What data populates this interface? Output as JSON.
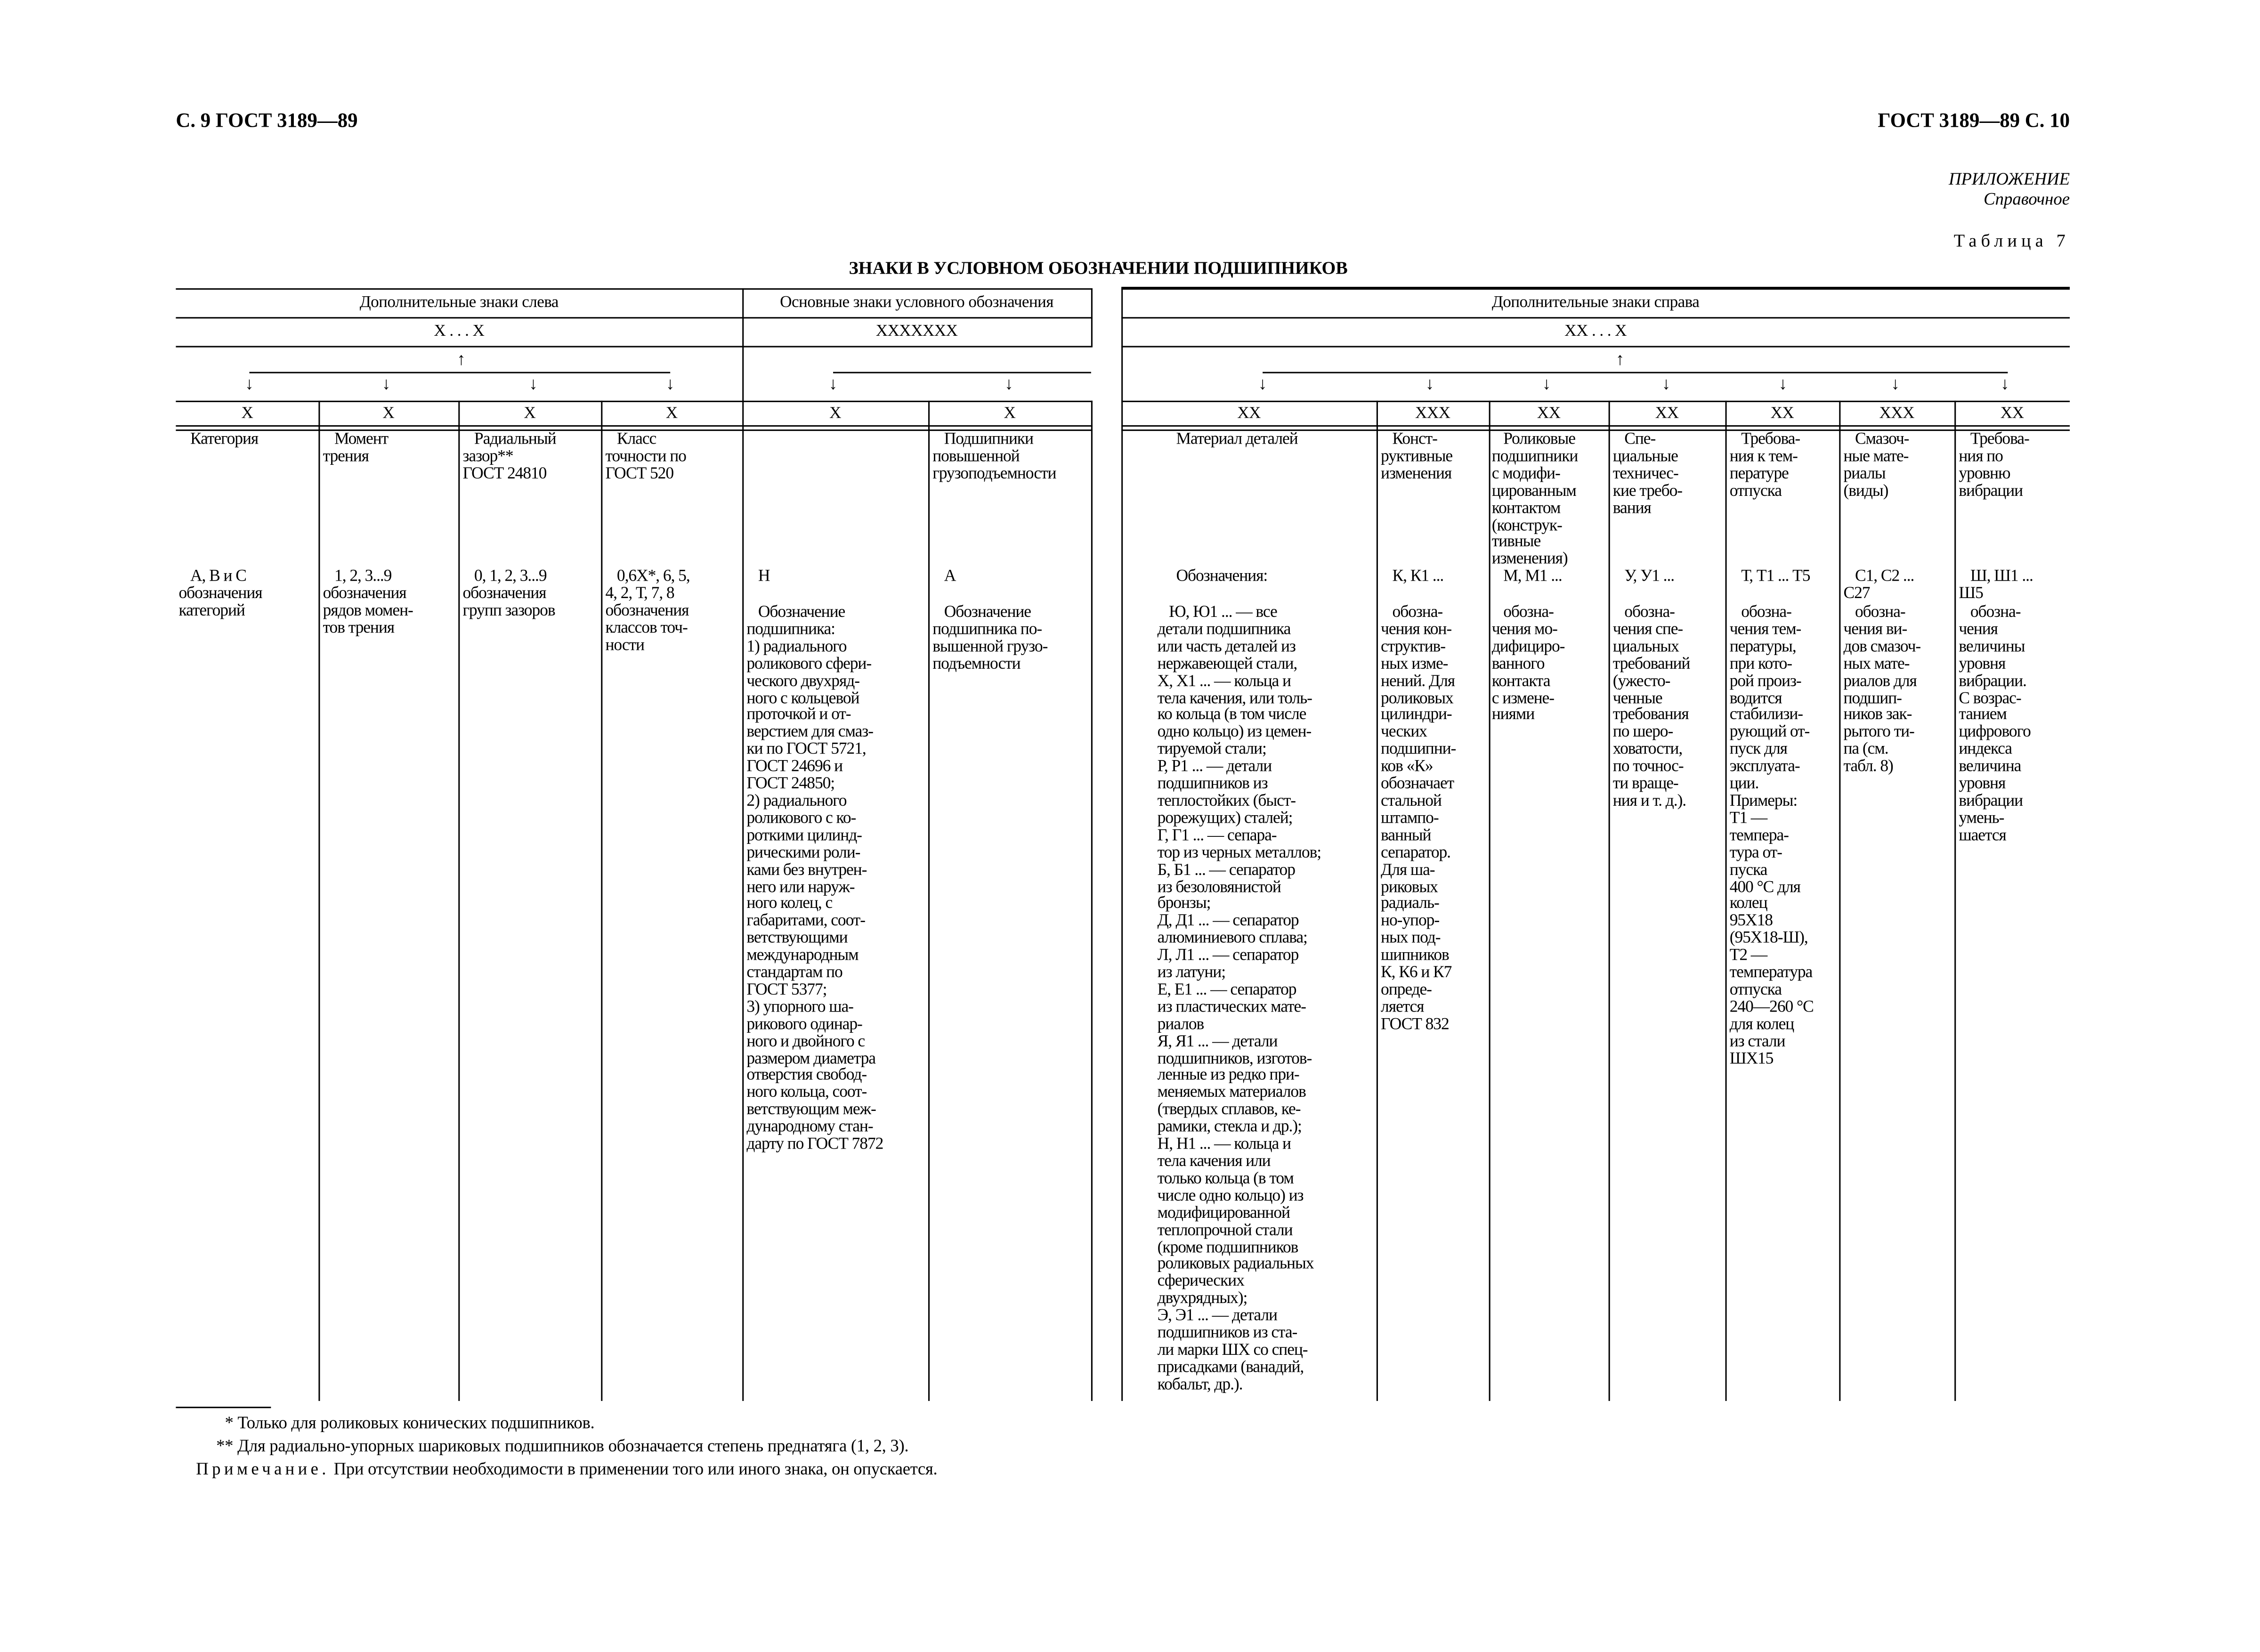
{
  "header": {
    "left": "С. 9 ГОСТ 3189—89",
    "right": "ГОСТ 3189—89 С. 10",
    "appendix": "ПРИЛОЖЕНИЕ",
    "appendix_type": "Справочное",
    "table_number": "Таблица 7",
    "title": "ЗНАКИ В УСЛОВНОМ ОБОЗНАЧЕНИИ ПОДШИПНИКОВ"
  },
  "groups": {
    "left": {
      "label": "Дополнительные знаки слева",
      "pattern": "X . . . X"
    },
    "main": {
      "label": "Основные знаки условного обозначения",
      "pattern": "XXXXXXX"
    },
    "right": {
      "label": "Дополнительные знаки справа",
      "pattern": "XX . . . X"
    }
  },
  "arrows": {
    "up": "↑",
    "down": "↓"
  },
  "columns": [
    {
      "mark": "X",
      "label": "Категория",
      "value": "А, В и С\nобозначения\nкатегорий",
      "desc": ""
    },
    {
      "mark": "X",
      "label": "Момент\nтрения",
      "value": "1, 2, 3...9\nобозначения\nрядов момен-\nтов трения",
      "desc": ""
    },
    {
      "mark": "X",
      "label": "Радиальный\nзазор**\nГОСТ 24810",
      "value": "0, 1, 2, 3...9\nобозначения\nгрупп зазоров",
      "desc": ""
    },
    {
      "mark": "X",
      "label": "Класс\nточности по\nГОСТ 520",
      "value": "0,6Х*, 6, 5,\n4, 2, Т, 7, 8\nобозначения\nклассов точ-\nности",
      "desc": ""
    },
    {
      "mark": "X",
      "label": "",
      "value": "Н",
      "desc": "Обозначение\nподшипника:\n1) радиального\nроликового сфери-\nческого двухряд-\nного с кольцевой\nпроточкой и от-\nверстием для смаз-\nки по ГОСТ 5721,\nГОСТ 24696 и\nГОСТ 24850;\n2) радиального\nроликового с ко-\nроткими цилинд-\nрическими роли-\nками без внутрен-\nнего или наруж-\nного колец, с\nгабаритами, соот-\nветствующими\nмеждународным\nстандартам по\nГОСТ 5377;\n3) упорного ша-\nрикового одинар-\nного и двойного с\nразмером диаметра\nотверстия свобод-\nного кольца, соот-\nветствующим меж-\nдународному стан-\nдарту по ГОСТ 7872"
    },
    {
      "mark": "X",
      "label": "Подшипники\nповышенной\nгрузоподъемности",
      "value": "А",
      "desc": "Обозначение\nподшипника по-\nвышенной грузо-\nподъемности"
    },
    {
      "mark": "XX",
      "label": "Материал деталей",
      "value": "Обозначения:",
      "desc": "Ю, Ю1 ... — все\nдетали подшипника\nили часть деталей из\nнержавеющей стали,\nХ, Х1 ... — кольца и\nтела качения, или толь-\nко кольца (в том числе\nодно кольцо) из цемен-\nтируемой стали;\nР, Р1 ... — детали\nподшипников из\nтеплостойких (быст-\nрорежущих) сталей;\nГ, Г1 ... — сепара-\nтор из черных металлов;\nБ, Б1 ... — сепаратор\nиз безоловянистой\nбронзы;\nД, Д1 ... — сепаратор\nалюминиевого сплава;\nЛ, Л1 ... — сепаратор\nиз латуни;\nЕ, Е1 ... — сепаратор\nиз пластических мате-\nриалов\nЯ, Я1 ... — детали\nподшипников, изготов-\nленные из редко при-\nменяемых материалов\n(твердых сплавов, ке-\nрамики, стекла и др.);\nН, Н1 ... — кольца и\nтела качения или\nтолько кольца (в том\nчисле одно кольцо) из\nмодифицированной\nтеплопрочной стали\n(кроме подшипников\nроликовых радиальных\nсферических\nдвухрядных);\nЭ, Э1 ... — детали\nподшипников из ста-\nли марки ШХ со спец-\nприсадками (ванадий,\nкобальт, др.)."
    },
    {
      "mark": "XXX",
      "label": "Конст-\nруктивные\nизменения",
      "value": "К, К1 ...",
      "desc": "обозна-\nчения кон-\nструктив-\nных изме-\nнений. Для\nроликовых\nцилиндри-\nческих\nподшипни-\nков «К»\nобозначает\nстальной\nштампо-\nванный\nсепаратор.\nДля ша-\nриковых\nрадиаль-\nно-упор-\nных под-\nшипников\nК, К6 и К7\nопреде-\nляется\nГОСТ 832"
    },
    {
      "mark": "XX",
      "label": "Роликовые\nподшипники\nс модифи-\nцированным\nконтактом\n(конструк-\nтивные\nизменения)",
      "value": "М, М1 ...",
      "desc": "обозна-\nчения мо-\nдифициро-\nванного\nконтакта\nс измене-\nниями"
    },
    {
      "mark": "XX",
      "label": "Спе-\nциальные\nтехничес-\nкие требо-\nвания",
      "value": "У, У1 ...",
      "desc": "обозна-\nчения спе-\nциальных\nтребований\n(ужесто-\nченные\nтребования\nпо шеро-\nховатости,\nпо точнос-\nти враще-\nния и т. д.)."
    },
    {
      "mark": "XX",
      "label": "Требова-\nния к тем-\nпературе\nотпуска",
      "value": "Т, Т1 ... Т5",
      "desc": "обозна-\nчения тем-\nпературы,\nпри кото-\nрой произ-\nводится\nстабилизи-\nрующий от-\nпуск для\nэксплуата-\nции.\nПримеры:\nТ1 —\nтемпера-\nтура от-\nпуска\n400 °С для\nколец\n95Х18\n(95Х18-Ш),\nТ2 —\nтемпература\nотпуска\n240—260 °С\nдля колец\nиз стали\nШХ15"
    },
    {
      "mark": "XXX",
      "label": "Смазоч-\nные мате-\nриалы\n(виды)",
      "value": "С1, С2 ...\nС27",
      "desc": "обозна-\nчения ви-\nдов смазоч-\nных мате-\nриалов для\nподшип-\nников зак-\nрытого ти-\nпа (см.\nтабл. 8)"
    },
    {
      "mark": "XX",
      "label": "Требова-\nния по\nуровню\nвибрации",
      "value": "Ш, Ш1 ...\nШ5",
      "desc": "обозна-\nчения\nвеличины\nуровня\nвибрации.\nС возрас-\nтанием\nцифрового\nиндекса\nвеличина\nуровня\nвибрации\nумень-\nшается"
    }
  ],
  "footnotes": {
    "star1": "* Только для роликовых конических подшипников.",
    "star2": "** Для радиально-упорных шариковых подшипников обозначается степень преднатяга (1, 2, 3).",
    "note_label": "Примечание.",
    "note_text": " При отсутствии необходимости в применении того или иного знака, он опускается."
  }
}
